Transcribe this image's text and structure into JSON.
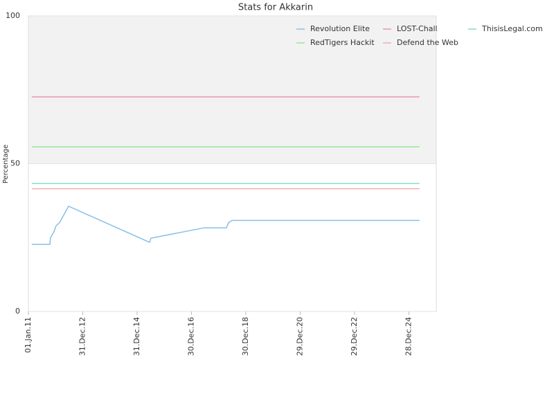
{
  "chart_data": {
    "type": "line",
    "title": "Stats for Akkarin",
    "y_label": "Percentage",
    "xlim": [
      "2011-01-01",
      "2025-12-31"
    ],
    "xticks": [
      {
        "value": "2011-01-01",
        "label": "01.Jan.11"
      },
      {
        "value": "2012-12-31",
        "label": "31.Dec.12"
      },
      {
        "value": "2014-12-31",
        "label": "31.Dec.14"
      },
      {
        "value": "2016-12-30",
        "label": "30.Dec.16"
      },
      {
        "value": "2018-12-30",
        "label": "30.Dec.18"
      },
      {
        "value": "2020-12-29",
        "label": "29.Dec.20"
      },
      {
        "value": "2022-12-29",
        "label": "29.Dec.22"
      },
      {
        "value": "2024-12-28",
        "label": "28.Dec.24"
      }
    ],
    "ylim": [
      0,
      100
    ],
    "yticks": [
      0,
      50,
      100
    ],
    "legend": "upper right",
    "series": [
      {
        "name": "Revolution Elite",
        "color": "#86bfe8",
        "x": [
          "2011-02-16",
          "2011-10-16",
          "2011-10-26",
          "2011-12-11",
          "2012-01-08",
          "2012-02-23",
          "2012-06-23",
          "2015-06-16",
          "2015-07-05",
          "2017-06-20",
          "2018-04-14",
          "2018-05-12",
          "2018-06-27",
          "2025-05-20"
        ],
        "values": [
          22.7,
          22.7,
          25,
          27,
          29,
          30,
          35.6,
          23.4,
          24.8,
          28.3,
          28.3,
          30,
          30.8,
          30.8
        ]
      },
      {
        "name": "LOST-Chall",
        "color": "#e895b8",
        "x": [
          "2011-02-16",
          "2025-05-20"
        ],
        "values": [
          72.6,
          72.6
        ]
      },
      {
        "name": "ThisisLegal.com",
        "color": "#80e0c8",
        "x": [
          "2011-02-16",
          "2025-05-20"
        ],
        "values": [
          43.3,
          43.3
        ]
      },
      {
        "name": "RedTigers Hackit",
        "color": "#99e699",
        "x": [
          "2011-02-16",
          "2025-05-20"
        ],
        "values": [
          55.7,
          55.7
        ]
      },
      {
        "name": "Defend the Web",
        "color": "#f0b0b0",
        "x": [
          "2011-02-16",
          "2025-05-20"
        ],
        "values": [
          41.5,
          41.5
        ]
      }
    ]
  }
}
